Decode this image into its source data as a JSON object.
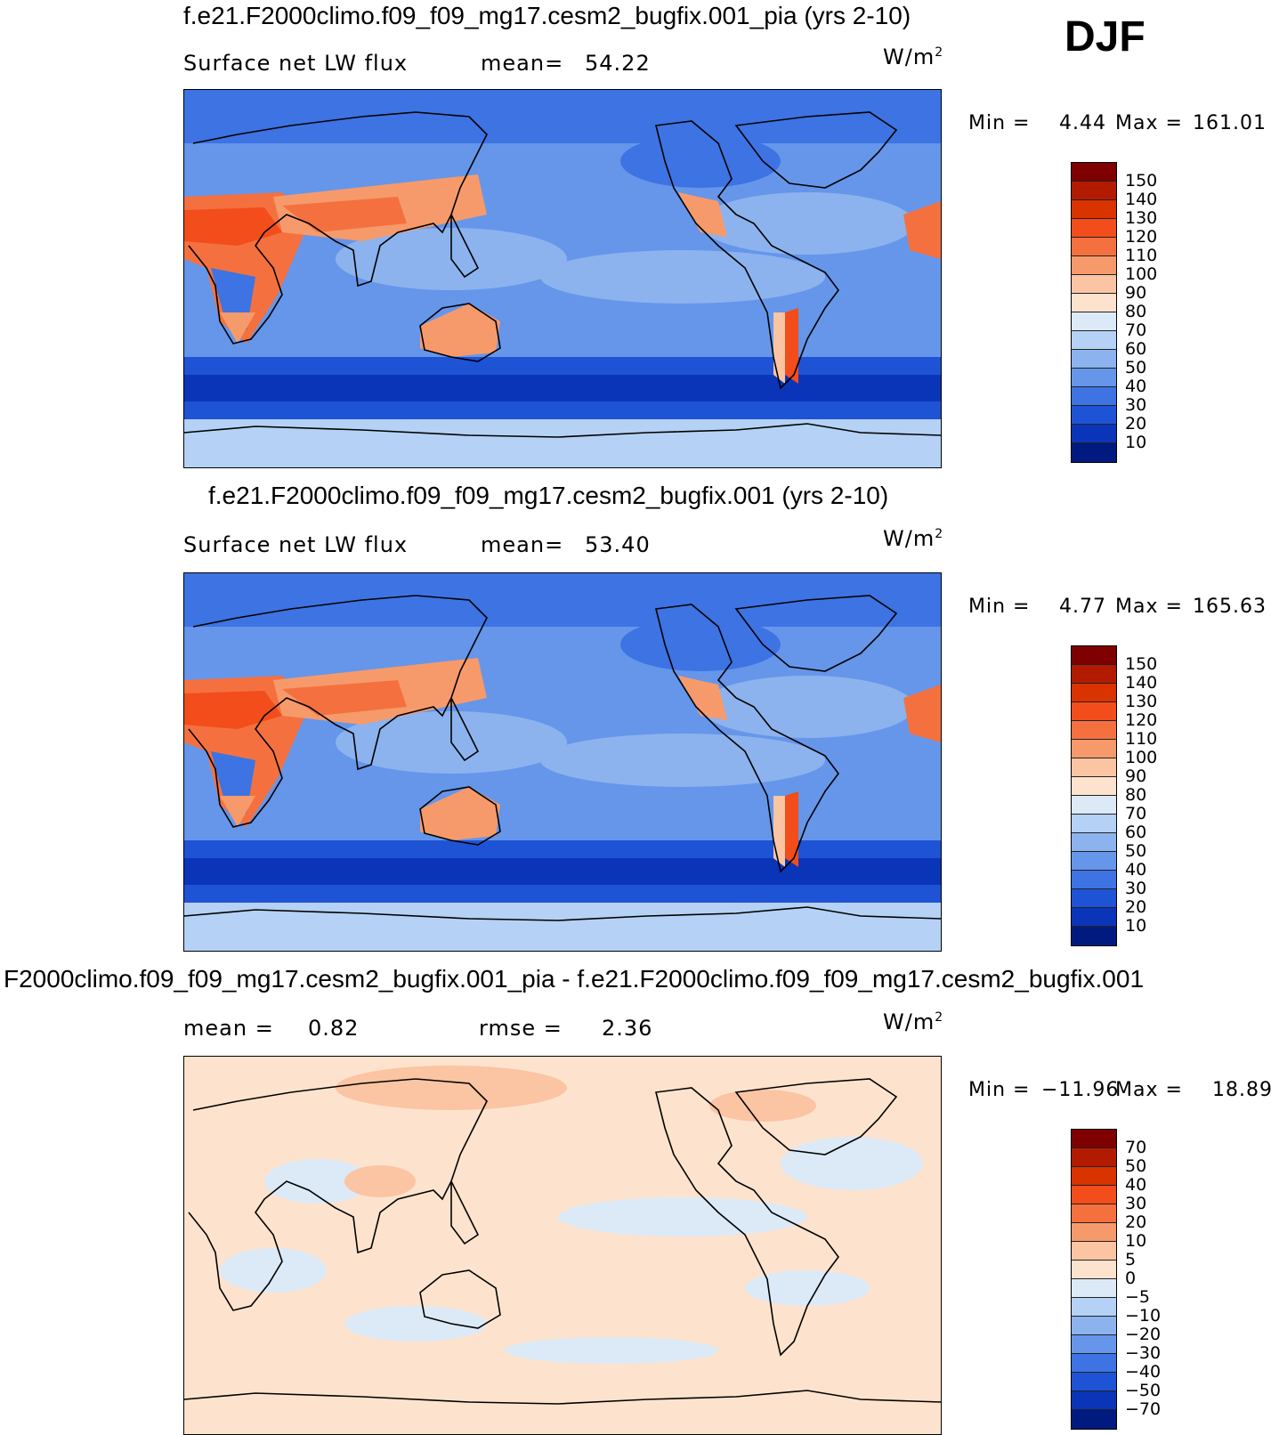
{
  "season": "DJF",
  "units_base": "W/m",
  "units_exp": "2",
  "panels": [
    {
      "title": "f.e21.F2000climo.f09_f09_mg17.cesm2_bugfix.001_pia (yrs 2-10)",
      "left_label": "Surface net LW flux",
      "stat_label": "mean=",
      "stat_value": "54.22",
      "min_label": "Min =",
      "min_value": "4.44",
      "max_label": "Max =",
      "max_value": "161.01",
      "colorbar_ticks": [
        "150",
        "140",
        "130",
        "120",
        "110",
        "100",
        "90",
        "80",
        "70",
        "60",
        "50",
        "40",
        "30",
        "20",
        "10"
      ]
    },
    {
      "title": "f.e21.F2000climo.f09_f09_mg17.cesm2_bugfix.001 (yrs 2-10)",
      "left_label": "Surface net LW flux",
      "stat_label": "mean=",
      "stat_value": "53.40",
      "min_label": "Min =",
      "min_value": "4.77",
      "max_label": "Max =",
      "max_value": "165.63",
      "colorbar_ticks": [
        "150",
        "140",
        "130",
        "120",
        "110",
        "100",
        "90",
        "80",
        "70",
        "60",
        "50",
        "40",
        "30",
        "20",
        "10"
      ]
    },
    {
      "title": "F2000climo.f09_f09_mg17.cesm2_bugfix.001_pia - f.e21.F2000climo.f09_f09_mg17.cesm2_bugfix.001",
      "left_label": "mean =",
      "left_value": "0.82",
      "stat_label": "rmse =",
      "stat_value": "2.36",
      "min_label": "Min =",
      "min_value": "−11.96",
      "max_label": "Max =",
      "max_value": "18.89",
      "colorbar_ticks": [
        "70",
        "50",
        "40",
        "30",
        "20",
        "10",
        "5",
        "0",
        "−5",
        "−10",
        "−20",
        "−30",
        "−40",
        "−50",
        "−70"
      ]
    }
  ],
  "colors": {
    "abs_scale": [
      "#7f0000",
      "#b31b00",
      "#d93300",
      "#f24d1a",
      "#f4713f",
      "#f79a6b",
      "#fbc4a3",
      "#fde3cd",
      "#dceaf8",
      "#b5d1f5",
      "#8cb3ee",
      "#6596ea",
      "#3d73e3",
      "#1f53d6",
      "#0b35b8",
      "#001a80"
    ],
    "diff_scale": [
      "#7f0000",
      "#b31b00",
      "#d93300",
      "#f24d1a",
      "#f4713f",
      "#f79a6b",
      "#fbc4a3",
      "#fde3cd",
      "#dceaf8",
      "#b5d1f5",
      "#8cb3ee",
      "#6596ea",
      "#3d73e3",
      "#1f53d6",
      "#0b35b8",
      "#001a80"
    ]
  }
}
